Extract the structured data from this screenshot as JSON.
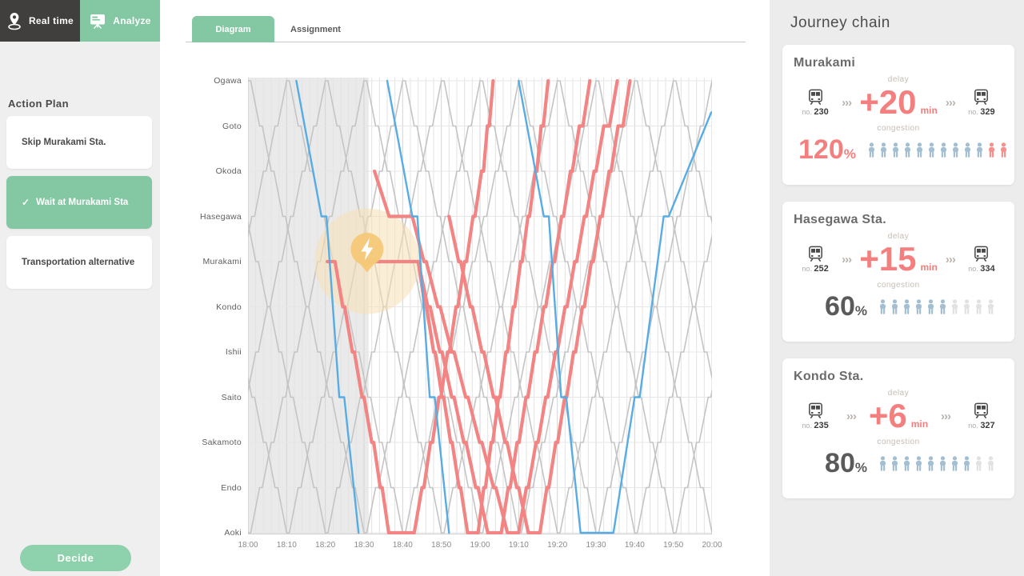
{
  "colors": {
    "green": "#84c7a3",
    "dark": "#413e3e",
    "red_line": "#f38484",
    "blue_line": "#58ace4",
    "gray_line": "#c4c4c4",
    "person_blue": "#a3bfd1",
    "person_red": "#f4908e",
    "person_empty": "#e2e2e2",
    "incident_halo": "#f8e0b4",
    "incident_pin": "#f4c878"
  },
  "nav": {
    "real_time_label": "Real time",
    "analyze_label": "Analyze"
  },
  "action_plan": {
    "title": "Action Plan",
    "decide_label": "Decide",
    "options": [
      {
        "label": "Skip Murakami Sta.",
        "selected": false
      },
      {
        "label": "Wait at Murakami Sta",
        "selected": true
      },
      {
        "label": "Transportation alternative",
        "selected": false
      }
    ]
  },
  "main_tabs": [
    {
      "label": "Diagram",
      "active": true
    },
    {
      "label": "Assignment",
      "active": false
    }
  ],
  "journey_chain": {
    "title": "Journey chain",
    "delay_label": "delay",
    "congestion_label": "congestion",
    "no_label": "no.",
    "min_label": "min",
    "chevron": "›››",
    "cards": [
      {
        "station": "Murakami",
        "delay": "+20",
        "train_from": "230",
        "train_to": "329",
        "congestion": "120",
        "percent": "%",
        "alert": true,
        "people": {
          "filled": 10,
          "overflow": 2,
          "empty": 0
        }
      },
      {
        "station": "Hasegawa Sta.",
        "delay": "+15",
        "train_from": "252",
        "train_to": "334",
        "congestion": "60",
        "percent": "%",
        "alert": false,
        "people": {
          "filled": 6,
          "overflow": 0,
          "empty": 4
        }
      },
      {
        "station": "Kondo Sta.",
        "delay": "+6",
        "train_from": "235",
        "train_to": "327",
        "congestion": "80",
        "percent": "%",
        "alert": false,
        "people": {
          "filled": 8,
          "overflow": 0,
          "empty": 2
        }
      }
    ]
  },
  "chart_data": {
    "type": "line",
    "title": "Train time-distance diagram",
    "stations": [
      "Ogawa",
      "Goto",
      "Okoda",
      "Hasegawa",
      "Murakami",
      "Kondo",
      "Ishii",
      "Saito",
      "Sakamoto",
      "Endo",
      "Aoki"
    ],
    "x_ticks": [
      "18:00",
      "18:10",
      "18:20",
      "18:30",
      "18:40",
      "18:50",
      "19:00",
      "19:10",
      "19:20",
      "19:30",
      "19:40",
      "19:50",
      "20:00"
    ],
    "time_range_min": [
      0,
      120
    ],
    "past_region_min": [
      0,
      31.2
    ],
    "incident": {
      "time_min": 30.8,
      "station_index": 3.85,
      "label": "incident-lightning"
    },
    "gray_schedule": {
      "headway_min": 10,
      "first_departure_min": -40,
      "last_departure_min": 115,
      "run_min_per_segment": 2.3,
      "dwell_min": 0.7,
      "width": 1.6
    },
    "series": [
      {
        "name": "delayed-early-turnback",
        "kind": "red",
        "width": 4.2,
        "points": [
          [
            20.5,
            4
          ],
          [
            22.5,
            4
          ],
          [
            24.5,
            5
          ],
          [
            25,
            5
          ],
          [
            27,
            6
          ],
          [
            27.5,
            6
          ],
          [
            29.5,
            7
          ],
          [
            30,
            7
          ],
          [
            32,
            8
          ],
          [
            32.5,
            8
          ],
          [
            34.2,
            9
          ],
          [
            34.7,
            9
          ],
          [
            36.4,
            10
          ],
          [
            43,
            10
          ],
          [
            45,
            9
          ],
          [
            45.5,
            9
          ],
          [
            47.2,
            8
          ],
          [
            47.7,
            8
          ],
          [
            49.4,
            7
          ],
          [
            49.9,
            7
          ],
          [
            51.6,
            6
          ],
          [
            52.1,
            6
          ],
          [
            53.8,
            5
          ],
          [
            54.3,
            5
          ],
          [
            56,
            4
          ],
          [
            56.5,
            4
          ],
          [
            58.2,
            3
          ],
          [
            58.7,
            3
          ],
          [
            60.4,
            2
          ],
          [
            60.9,
            2
          ],
          [
            61.9,
            1
          ],
          [
            62.4,
            1
          ],
          [
            63.4,
            0
          ]
        ]
      },
      {
        "name": "held-at-murakami",
        "kind": "red",
        "width": 4.2,
        "points": [
          [
            30.8,
            4
          ],
          [
            44,
            4
          ],
          [
            46.5,
            5
          ],
          [
            47.1,
            5
          ],
          [
            49.6,
            6
          ],
          [
            50.2,
            6
          ],
          [
            52.7,
            7
          ],
          [
            53.3,
            7
          ],
          [
            55.8,
            8
          ],
          [
            56.4,
            8
          ],
          [
            58.9,
            9
          ],
          [
            59.5,
            9
          ],
          [
            62,
            10
          ],
          [
            65.5,
            10
          ],
          [
            67.3,
            9
          ],
          [
            67.8,
            9
          ],
          [
            69.6,
            8
          ],
          [
            70.1,
            8
          ],
          [
            71.9,
            7
          ],
          [
            72.4,
            7
          ],
          [
            74.2,
            6
          ],
          [
            74.7,
            6
          ],
          [
            76.5,
            5
          ],
          [
            77,
            5
          ],
          [
            78.8,
            4
          ],
          [
            79.3,
            4
          ],
          [
            81.1,
            3
          ],
          [
            81.6,
            3
          ],
          [
            83.4,
            2
          ],
          [
            83.9,
            2
          ],
          [
            85.7,
            1
          ],
          [
            86.6,
            1
          ],
          [
            88.4,
            0
          ]
        ]
      },
      {
        "name": "express-resume",
        "kind": "red",
        "width": 4.2,
        "points": [
          [
            44,
            4
          ],
          [
            45.8,
            5
          ],
          [
            46.2,
            5
          ],
          [
            48,
            6
          ],
          [
            48.4,
            6
          ],
          [
            50.2,
            7
          ],
          [
            50.6,
            7
          ],
          [
            52.4,
            8
          ],
          [
            52.8,
            8
          ],
          [
            54.6,
            9
          ],
          [
            55,
            9
          ],
          [
            56.8,
            10
          ],
          [
            59.5,
            10
          ],
          [
            61,
            9
          ],
          [
            61.4,
            9
          ],
          [
            62.9,
            8
          ],
          [
            63.3,
            8
          ],
          [
            64.8,
            7
          ],
          [
            65.2,
            7
          ],
          [
            66.7,
            6
          ],
          [
            67.1,
            6
          ],
          [
            68.6,
            5
          ],
          [
            69,
            5
          ],
          [
            70.5,
            4
          ],
          [
            70.9,
            4
          ],
          [
            72.4,
            3
          ],
          [
            72.8,
            3
          ],
          [
            74.3,
            2
          ],
          [
            74.7,
            2
          ],
          [
            75.8,
            1
          ],
          [
            76.4,
            1
          ],
          [
            77.6,
            0
          ]
        ]
      },
      {
        "name": "held-at-hasegawa",
        "kind": "red",
        "width": 4.2,
        "points": [
          [
            32.7,
            2
          ],
          [
            36.5,
            3
          ],
          [
            42.5,
            3
          ],
          [
            45.5,
            4
          ],
          [
            46.1,
            4
          ],
          [
            49.1,
            5
          ],
          [
            49.7,
            5
          ],
          [
            52.7,
            6
          ],
          [
            53.3,
            6
          ],
          [
            56.3,
            7
          ],
          [
            56.9,
            7
          ],
          [
            59.9,
            8
          ],
          [
            60.5,
            8
          ],
          [
            63.5,
            9
          ],
          [
            64.1,
            9
          ],
          [
            67.1,
            10
          ],
          [
            70,
            10
          ],
          [
            72,
            9
          ],
          [
            72.5,
            9
          ],
          [
            74.5,
            8
          ],
          [
            75,
            8
          ],
          [
            77,
            7
          ],
          [
            77.5,
            7
          ],
          [
            79.5,
            6
          ],
          [
            80,
            6
          ],
          [
            82,
            5
          ],
          [
            82.5,
            5
          ],
          [
            84.5,
            4
          ],
          [
            85,
            4
          ],
          [
            87,
            3
          ],
          [
            87.5,
            3
          ],
          [
            89.5,
            2
          ],
          [
            90,
            2
          ],
          [
            92,
            1
          ],
          [
            93.5,
            1
          ],
          [
            95.5,
            0
          ]
        ]
      },
      {
        "name": "delayed-late-climb",
        "kind": "red",
        "width": 4.2,
        "points": [
          [
            52,
            3
          ],
          [
            54.5,
            4
          ],
          [
            55,
            4
          ],
          [
            57.5,
            5
          ],
          [
            58,
            5
          ],
          [
            60.5,
            6
          ],
          [
            61,
            6
          ],
          [
            63.5,
            7
          ],
          [
            64,
            7
          ],
          [
            66.5,
            8
          ],
          [
            67,
            8
          ],
          [
            69.5,
            9
          ],
          [
            70,
            9
          ],
          [
            72.5,
            10
          ],
          [
            75.5,
            10
          ],
          [
            77.3,
            9
          ],
          [
            77.8,
            9
          ],
          [
            79.6,
            8
          ],
          [
            80.1,
            8
          ],
          [
            81.9,
            7
          ],
          [
            82.4,
            7
          ],
          [
            84.2,
            6
          ],
          [
            84.7,
            6
          ],
          [
            86.5,
            5
          ],
          [
            87,
            5
          ],
          [
            88.8,
            4
          ],
          [
            89.3,
            4
          ],
          [
            91.1,
            3
          ],
          [
            91.6,
            3
          ],
          [
            93.4,
            2
          ],
          [
            93.9,
            2
          ],
          [
            95.7,
            1
          ],
          [
            97,
            1
          ],
          [
            98.8,
            0
          ]
        ]
      },
      {
        "name": "express-down-1",
        "kind": "blue",
        "width": 2.4,
        "points": [
          [
            12.5,
            0
          ],
          [
            19,
            3
          ],
          [
            20.3,
            3
          ],
          [
            23.6,
            7
          ],
          [
            24.9,
            7
          ],
          [
            28.6,
            10
          ]
        ]
      },
      {
        "name": "express-down-2",
        "kind": "blue",
        "width": 2.4,
        "points": [
          [
            36,
            0
          ],
          [
            42.5,
            3
          ],
          [
            43.8,
            3
          ],
          [
            47,
            7
          ],
          [
            48.3,
            7
          ],
          [
            52,
            10
          ]
        ]
      },
      {
        "name": "express-turnback",
        "kind": "blue",
        "width": 2.4,
        "points": [
          [
            70,
            0
          ],
          [
            76.5,
            3
          ],
          [
            77.8,
            3
          ],
          [
            81,
            7
          ],
          [
            82.3,
            7
          ],
          [
            86,
            10
          ],
          [
            94.5,
            10
          ],
          [
            100,
            7
          ],
          [
            101.3,
            7
          ],
          [
            107.5,
            3
          ],
          [
            108.8,
            3
          ],
          [
            119.8,
            0.7
          ]
        ]
      }
    ]
  }
}
